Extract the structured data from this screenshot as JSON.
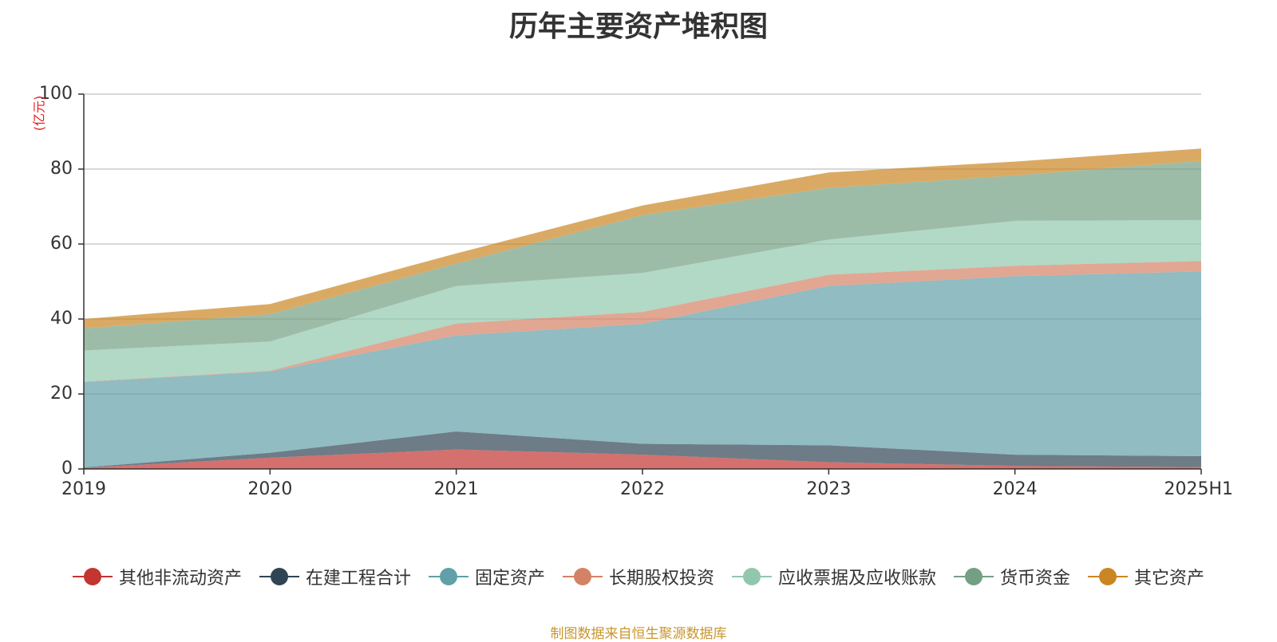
{
  "chart_data": {
    "type": "area",
    "stacked": true,
    "title": "历年主要资产堆积图",
    "unit_label": "(亿元)",
    "categories": [
      "2019",
      "2020",
      "2021",
      "2022",
      "2023",
      "2024",
      "2025H1"
    ],
    "ylim": [
      0,
      100
    ],
    "yticks": [
      0,
      20,
      40,
      60,
      80,
      100
    ],
    "grid": true,
    "legend_position": "bottom",
    "series": [
      {
        "name": "其他非流动资产",
        "color": "#c23531",
        "values": [
          0.3,
          3.0,
          5.2,
          3.8,
          1.8,
          0.8,
          0.5
        ]
      },
      {
        "name": "在建工程合计",
        "color": "#2f4554",
        "values": [
          0.1,
          1.3,
          4.8,
          2.9,
          4.5,
          3.0,
          2.9
        ]
      },
      {
        "name": "固定资产",
        "color": "#61a0a8",
        "values": [
          22.8,
          21.7,
          25.6,
          32.0,
          42.5,
          47.6,
          49.3
        ]
      },
      {
        "name": "长期股权投资",
        "color": "#d48265",
        "values": [
          0.1,
          0.2,
          3.2,
          3.2,
          3.0,
          2.8,
          2.8
        ]
      },
      {
        "name": "应收票据及应收账款",
        "color": "#91c7ae",
        "values": [
          8.3,
          7.8,
          10.0,
          10.4,
          9.4,
          12.0,
          10.9
        ]
      },
      {
        "name": "货币资金",
        "color": "#749f83",
        "values": [
          5.9,
          7.3,
          6.0,
          15.4,
          13.8,
          12.1,
          15.8
        ]
      },
      {
        "name": "其它资产",
        "color": "#ca8622",
        "values": [
          2.5,
          2.7,
          2.7,
          2.6,
          4.1,
          3.7,
          3.3
        ]
      }
    ],
    "source_note": "制图数据来自恒生聚源数据库"
  }
}
